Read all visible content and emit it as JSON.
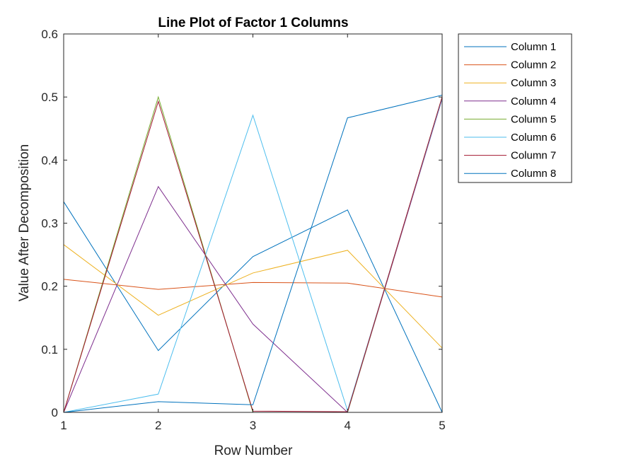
{
  "chart_data": {
    "type": "line",
    "title": "Line Plot of Factor 1 Columns",
    "xlabel": "Row Number",
    "ylabel": "Value After Decomposition",
    "x": [
      1,
      2,
      3,
      4,
      5
    ],
    "xlim": [
      1,
      5
    ],
    "ylim": [
      0,
      0.6
    ],
    "xticks": [
      "1",
      "2",
      "3",
      "4",
      "5"
    ],
    "yticks": [
      "0",
      "0.1",
      "0.2",
      "0.3",
      "0.4",
      "0.5",
      "0.6"
    ],
    "grid": false,
    "legend_position": "outside-top-right",
    "series": [
      {
        "name": "Column 1",
        "color": "#0072BD",
        "values": [
          0.334,
          0.098,
          0.247,
          0.321,
          0.0
        ]
      },
      {
        "name": "Column 2",
        "color": "#D95319",
        "values": [
          0.211,
          0.195,
          0.206,
          0.205,
          0.183
        ]
      },
      {
        "name": "Column 3",
        "color": "#EDB120",
        "values": [
          0.266,
          0.154,
          0.221,
          0.257,
          0.102
        ]
      },
      {
        "name": "Column 4",
        "color": "#7E2F8E",
        "values": [
          0.0,
          0.358,
          0.14,
          0.0,
          0.497
        ]
      },
      {
        "name": "Column 5",
        "color": "#77AC30",
        "values": [
          0.0,
          0.5,
          0.0,
          0.0,
          0.5
        ]
      },
      {
        "name": "Column 6",
        "color": "#4DBEEE",
        "values": [
          0.0,
          0.029,
          0.471,
          0.003,
          0.498
        ]
      },
      {
        "name": "Column 7",
        "color": "#A2142F",
        "values": [
          0.0,
          0.493,
          0.002,
          0.001,
          0.5
        ]
      },
      {
        "name": "Column 8",
        "color": "#0072BD",
        "values": [
          0.0,
          0.017,
          0.012,
          0.467,
          0.503
        ]
      }
    ]
  }
}
